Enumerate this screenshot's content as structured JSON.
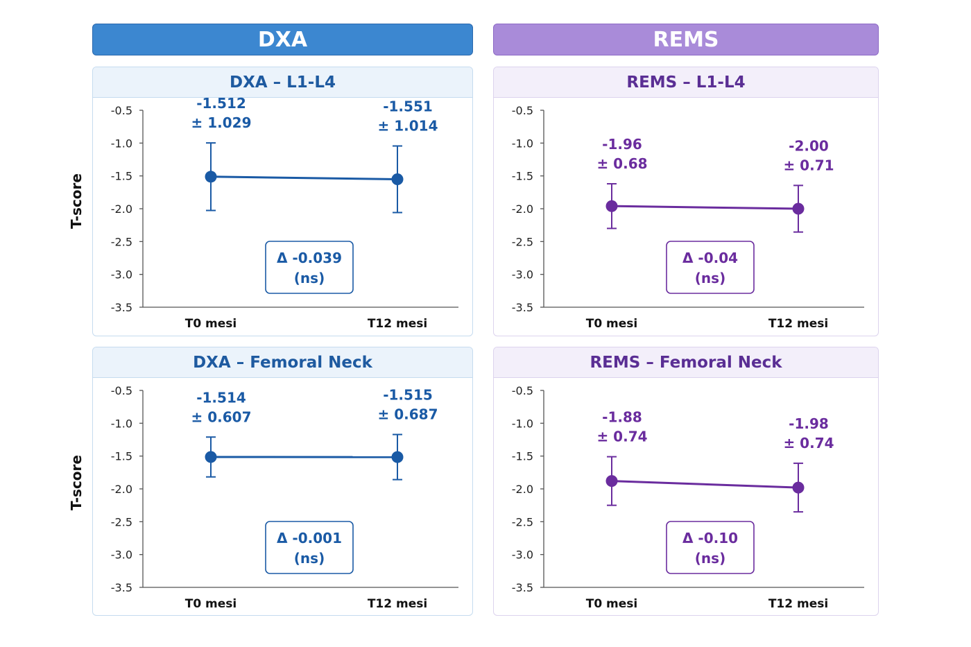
{
  "columns": {
    "left": "DXA",
    "right": "REMS"
  },
  "y_axis_label": "T-score",
  "colors": {
    "blue": "#1a5aa5",
    "purple": "#6a2c9e"
  },
  "chart_data": [
    {
      "id": "dxa-l1l4",
      "type": "line",
      "title": "DXA – L1-L4",
      "color": "#1a5aa5",
      "categories": [
        "T0 mesi",
        "T12 mesi"
      ],
      "ylim": [
        -3.5,
        -0.5
      ],
      "yticks": [
        "-0.5",
        "-1.0",
        "-1.5",
        "-2.0",
        "-2.5",
        "-3.0",
        "-3.5"
      ],
      "series": [
        {
          "values": [
            -1.512,
            -1.551
          ],
          "errors": [
            1.029,
            1.014
          ]
        }
      ],
      "value_labels": [
        [
          "-1.512",
          "± 1.029"
        ],
        [
          "-1.551",
          "± 1.014"
        ]
      ],
      "delta": [
        "Δ -0.039",
        "(ns)"
      ]
    },
    {
      "id": "rems-l1l4",
      "type": "line",
      "title": "REMS – L1-L4",
      "color": "#6a2c9e",
      "categories": [
        "T0 mesi",
        "T12 mesi"
      ],
      "ylim": [
        -3.5,
        -0.5
      ],
      "yticks": [
        "-0.5",
        "-1.0",
        "-1.5",
        "-2.0",
        "-2.5",
        "-3.0",
        "-3.5"
      ],
      "series": [
        {
          "values": [
            -1.96,
            -2.0
          ],
          "errors": [
            0.68,
            0.71
          ]
        }
      ],
      "value_labels": [
        [
          "-1.96",
          "± 0.68"
        ],
        [
          "-2.00",
          "± 0.71"
        ]
      ],
      "delta": [
        "Δ -0.04",
        "(ns)"
      ]
    },
    {
      "id": "dxa-fn",
      "type": "line",
      "title": "DXA – Femoral Neck",
      "color": "#1a5aa5",
      "categories": [
        "T0 mesi",
        "T12 mesi"
      ],
      "ylim": [
        -3.5,
        -0.5
      ],
      "yticks": [
        "-0.5",
        "-1.0",
        "-1.5",
        "-2.0",
        "-2.5",
        "-3.0",
        "-3.5"
      ],
      "series": [
        {
          "values": [
            -1.514,
            -1.515
          ],
          "errors": [
            0.607,
            0.687
          ]
        }
      ],
      "value_labels": [
        [
          "-1.514",
          "± 0.607"
        ],
        [
          "-1.515",
          "± 0.687"
        ]
      ],
      "delta": [
        "Δ -0.001",
        "(ns)"
      ]
    },
    {
      "id": "rems-fn",
      "type": "line",
      "title": "REMS – Femoral Neck",
      "color": "#6a2c9e",
      "categories": [
        "T0 mesi",
        "T12 mesi"
      ],
      "ylim": [
        -3.5,
        -0.5
      ],
      "yticks": [
        "-0.5",
        "-1.0",
        "-1.5",
        "-2.0",
        "-2.5",
        "-3.0",
        "-3.5"
      ],
      "series": [
        {
          "values": [
            -1.88,
            -1.98
          ],
          "errors": [
            0.74,
            0.74
          ]
        }
      ],
      "value_labels": [
        [
          "-1.88",
          "± 0.74"
        ],
        [
          "-1.98",
          "± 0.74"
        ]
      ],
      "delta": [
        "Δ -0.10",
        "(ns)"
      ]
    }
  ]
}
